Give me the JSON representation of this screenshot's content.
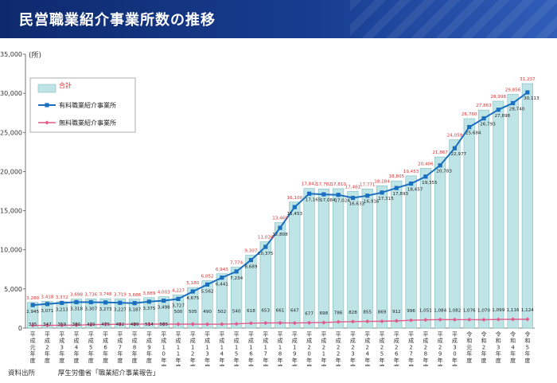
{
  "page": {
    "title": "民営職業紹介事業所数の推移",
    "source_label": "資料出所",
    "source_text": "厚生労働省「職業紹介事業報告」"
  },
  "colors": {
    "bar_fill": "#bfe4e6",
    "bar_stroke": "#7fbcc0",
    "paid_line": "#1a6fbf",
    "free_line": "#e05a8a",
    "total_label": "#e0302f",
    "title_bar": "#143584"
  },
  "chart_data": {
    "type": "bar",
    "unit_label": "(所)",
    "ylim": [
      0,
      35000
    ],
    "yticks": [
      "0",
      "5,000",
      "10,000",
      "15,000",
      "20,000",
      "25,000",
      "30,000",
      "35,000"
    ],
    "grid": false,
    "legend_position": "top-left",
    "categories": [
      "平成元年度",
      "平成2年度",
      "平成3年度",
      "平成4年度",
      "平成5年度",
      "平成6年度",
      "平成7年度",
      "平成8年度",
      "平成9年度",
      "平成10年度",
      "平成11年度",
      "平成12年度",
      "平成13年度",
      "平成14年度",
      "平成15年度",
      "平成16年度",
      "平成17年度",
      "平成18年度",
      "平成19年度",
      "平成20年度",
      "平成21年度",
      "平成22年度",
      "平成23年度",
      "平成24年度",
      "平成25年度",
      "平成26年度",
      "平成27年度",
      "平成28年度",
      "平成29年度",
      "平成30年度",
      "令和元年度",
      "令和2年度",
      "令和3年度",
      "令和4年度",
      "令和5年度"
    ],
    "series": [
      {
        "name": "合計",
        "kind": "bar",
        "values": [
          3280,
          3418,
          3372,
          3698,
          3736,
          3748,
          3719,
          3686,
          3889,
          4003,
          4227,
          5180,
          6052,
          6943,
          7774,
          9307,
          11028,
          13469,
          16100,
          17842,
          17782,
          17810,
          17461,
          17771,
          18184,
          18805,
          19453,
          20406,
          21867,
          24059,
          26760,
          27863,
          28998,
          29856,
          31237
        ]
      },
      {
        "name": "有料職業紹介事業所",
        "kind": "line",
        "values": [
          2945,
          3071,
          3213,
          3318,
          3307,
          3273,
          3227,
          3187,
          3375,
          3498,
          3727,
          4675,
          5562,
          6441,
          7234,
          8689,
          10375,
          12808,
          15453,
          17165,
          17084,
          17024,
          16633,
          16916,
          17315,
          17893,
          18457,
          19355,
          20783,
          22977,
          25684,
          26793,
          27898,
          28740,
          30113
        ]
      },
      {
        "name": "無料職業紹介事業所",
        "kind": "line",
        "values": [
          335,
          347,
          359,
          380,
          429,
          475,
          492,
          499,
          514,
          505,
          500,
          505,
          490,
          502,
          540,
          618,
          653,
          661,
          647,
          677,
          698,
          786,
          828,
          855,
          869,
          912,
          996,
          1051,
          1084,
          1082,
          1076,
          1070,
          1099,
          1116,
          1124
        ]
      }
    ]
  }
}
